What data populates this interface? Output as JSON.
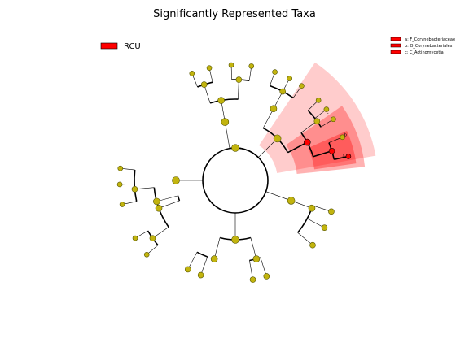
{
  "title": "Significantly Represented Taxa",
  "colors": {
    "node": "#c2b40e",
    "node_stroke": "#555500",
    "highlight": "#ff0000",
    "edge": "#000000"
  },
  "class_legend": {
    "label": "RCU",
    "color": "#ff0000"
  },
  "taxa_legend": [
    {
      "letter": "a",
      "label": "a: F_Corynebacteriaceae"
    },
    {
      "letter": "b",
      "label": "b: O_Corynebacteriales"
    },
    {
      "letter": "c",
      "label": "c: C_Actinomycetia"
    }
  ],
  "center_mark": "."
}
